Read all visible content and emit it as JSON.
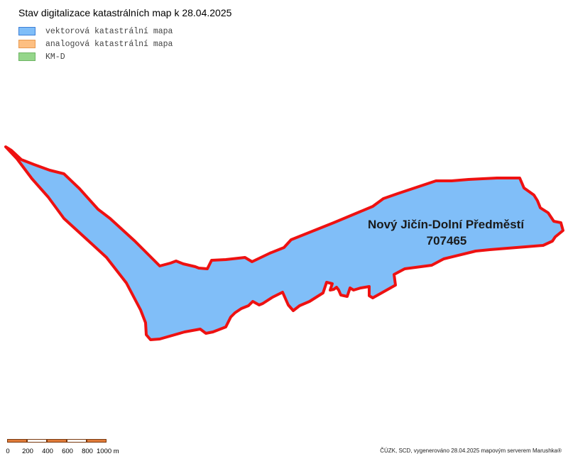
{
  "map": {
    "title": "Stav digitalizace katastrálních map k 28.04.2025",
    "legend": [
      {
        "label": "vektorová katastrální mapa",
        "fill": "#80bef8",
        "border": "#3d7fd6"
      },
      {
        "label": "analogová katastrální mapa",
        "fill": "#fdbf82",
        "border": "#e89a50"
      },
      {
        "label": "KM-D",
        "fill": "#95d68b",
        "border": "#6db463"
      }
    ],
    "parcel": {
      "name": "Nový Jičín-Dolní Předměstí",
      "code": "707465",
      "fill": "#80bef8",
      "outline": "#ee1111"
    },
    "scale_bar": {
      "ticks": [
        "0",
        "200",
        "400",
        "600",
        "800",
        "1000 m"
      ],
      "colors": [
        "#e07b39",
        "#ffffff"
      ]
    },
    "attribution": "ČÚZK, SCD, vygenerováno 28.04.2025 mapovým serverem Marushka®"
  }
}
